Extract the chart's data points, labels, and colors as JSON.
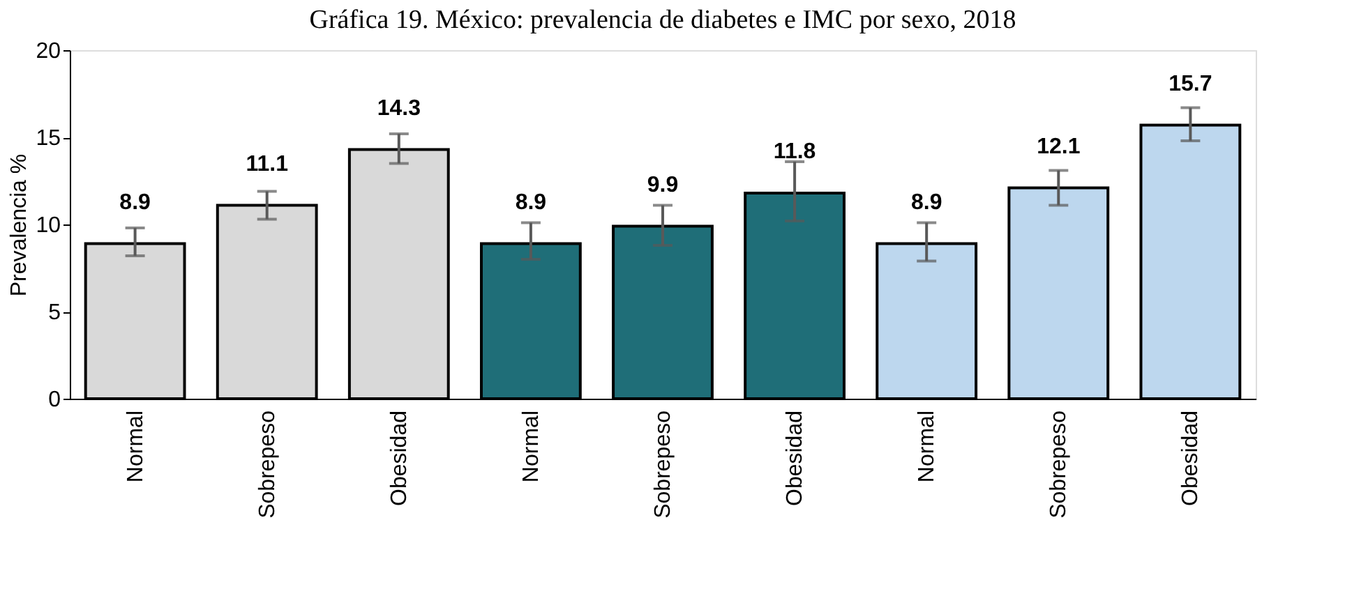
{
  "chart_data": {
    "type": "bar",
    "title": "Gráfica 19. México: prevalencia de diabetes e IMC por sexo, 2018",
    "ylabel": "Prevalencia %",
    "categories": [
      "Normal",
      "Sobrepeso",
      "Obesidad",
      "Normal",
      "Sobrepeso",
      "Obesidad",
      "Normal",
      "Sobrepeso",
      "Obesidad"
    ],
    "values": [
      8.9,
      11.1,
      14.3,
      8.9,
      9.9,
      11.8,
      8.9,
      12.1,
      15.7
    ],
    "colors": [
      "#d9d9d9",
      "#d9d9d9",
      "#d9d9d9",
      "#1f6e78",
      "#1f6e78",
      "#1f6e78",
      "#bdd7ee",
      "#bdd7ee",
      "#bdd7ee"
    ],
    "errors": [
      [
        8.2,
        9.8
      ],
      [
        10.3,
        11.9
      ],
      [
        13.5,
        15.2
      ],
      [
        8.0,
        10.1
      ],
      [
        8.8,
        11.1
      ],
      [
        10.2,
        13.6
      ],
      [
        7.9,
        10.1
      ],
      [
        11.1,
        13.1
      ],
      [
        14.8,
        16.7
      ]
    ],
    "ylim": [
      0,
      20
    ],
    "yticks": [
      0,
      5,
      10,
      15,
      20
    ],
    "data_labels": true,
    "grid": false
  }
}
